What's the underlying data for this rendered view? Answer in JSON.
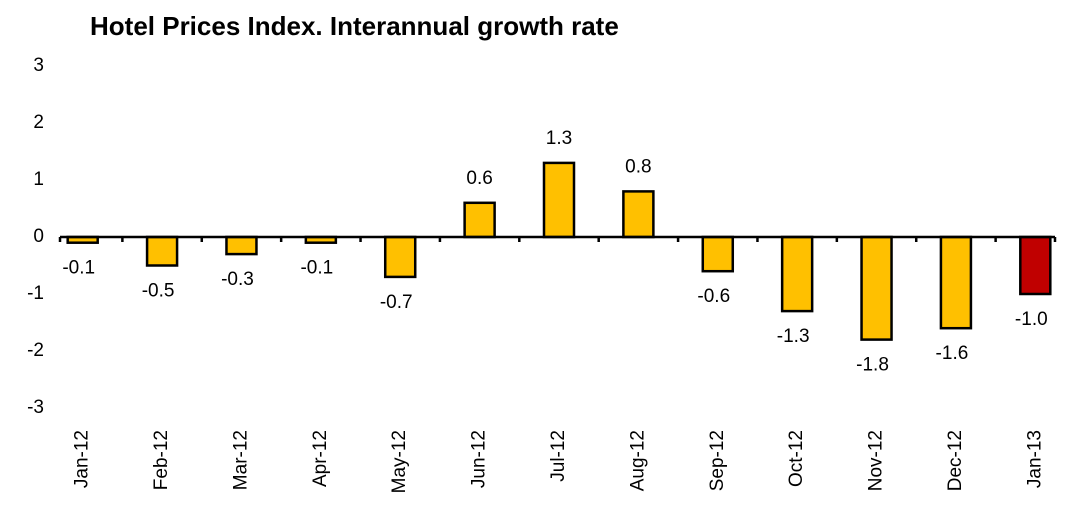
{
  "chart_data": {
    "type": "bar",
    "title": "Hotel Prices Index. Interannual growth rate",
    "categories": [
      "Jan-12",
      "Feb-12",
      "Mar-12",
      "Apr-12",
      "May-12",
      "Jun-12",
      "Jul-12",
      "Aug-12",
      "Sep-12",
      "Oct-12",
      "Nov-12",
      "Dec-12",
      "Jan-13"
    ],
    "values": [
      -0.1,
      -0.5,
      -0.3,
      -0.1,
      -0.7,
      0.6,
      1.3,
      0.8,
      -0.6,
      -1.3,
      -1.8,
      -1.6,
      -1.0
    ],
    "value_labels": [
      "-0.1",
      "-0.5",
      "-0.3",
      "-0.1",
      "-0.7",
      "0.6",
      "1.3",
      "0.8",
      "-0.6",
      "-1.3",
      "-1.8",
      "-1.6",
      "-1.0"
    ],
    "colors": [
      "#ffc000",
      "#ffc000",
      "#ffc000",
      "#ffc000",
      "#ffc000",
      "#ffc000",
      "#ffc000",
      "#ffc000",
      "#ffc000",
      "#ffc000",
      "#ffc000",
      "#ffc000",
      "#c00000"
    ],
    "ylim": [
      -3,
      3
    ],
    "yticks": [
      -3,
      -2,
      -1,
      0,
      1,
      2,
      3
    ],
    "grid": false
  }
}
